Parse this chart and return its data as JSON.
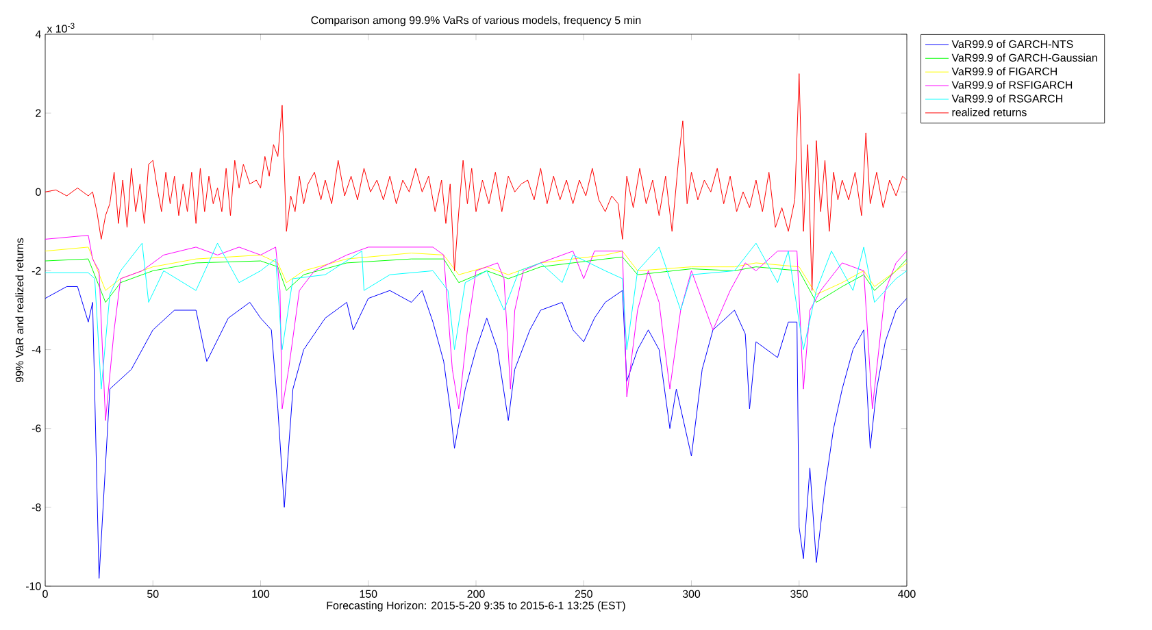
{
  "chart_data": {
    "type": "line",
    "title": "Comparison among 99.9% VaRs of various models, frequency 5 min",
    "xlabel": "Forecasting Horizon: 2015-5-20 9:35 to 2015-6-1 13:25 (EST)",
    "ylabel": "99% VaR and realized returns",
    "annotations": [
      "x 10$^{-3}$"
    ],
    "xlim": [
      0,
      400
    ],
    "ylim": [
      -10,
      4
    ],
    "xticks": [
      0,
      50,
      100,
      150,
      200,
      250,
      300,
      350,
      400
    ],
    "yticks": [
      -10,
      -8,
      -6,
      -4,
      -2,
      0,
      2,
      4
    ],
    "grid": false,
    "legend": "top right",
    "marker": "none",
    "line_style": "solid",
    "series": [
      {
        "name": "VaR99.9 of GARCH-NTS",
        "color": "#0000ff",
        "x": [
          0,
          10,
          15,
          20,
          22,
          25,
          30,
          40,
          50,
          60,
          70,
          75,
          85,
          95,
          100,
          105,
          108,
          111,
          115,
          120,
          130,
          140,
          143,
          150,
          160,
          170,
          175,
          180,
          185,
          188,
          190,
          195,
          200,
          205,
          210,
          215,
          218,
          225,
          230,
          240,
          245,
          250,
          255,
          260,
          268,
          270,
          275,
          280,
          285,
          290,
          293,
          300,
          305,
          310,
          320,
          325,
          327,
          330,
          340,
          345,
          349,
          350,
          352,
          355,
          358,
          362,
          366,
          370,
          375,
          380,
          383,
          386,
          390,
          395,
          400
        ],
        "values": [
          -2.7,
          -2.4,
          -2.4,
          -3.3,
          -2.8,
          -9.8,
          -5.0,
          -4.5,
          -3.5,
          -3.0,
          -3.0,
          -4.3,
          -3.2,
          -2.8,
          -3.2,
          -3.5,
          -5.5,
          -8.0,
          -5.0,
          -4.0,
          -3.2,
          -2.8,
          -3.5,
          -2.7,
          -2.5,
          -2.8,
          -2.5,
          -3.3,
          -4.3,
          -5.5,
          -6.5,
          -5.0,
          -4.0,
          -3.2,
          -4.0,
          -5.8,
          -4.5,
          -3.5,
          -3.0,
          -2.8,
          -3.5,
          -3.8,
          -3.2,
          -2.8,
          -2.5,
          -4.8,
          -4.0,
          -3.5,
          -4.0,
          -6.0,
          -5.0,
          -6.7,
          -4.5,
          -3.5,
          -3.0,
          -3.6,
          -5.5,
          -3.8,
          -4.2,
          -3.3,
          -3.3,
          -8.5,
          -9.3,
          -7.0,
          -9.4,
          -7.5,
          -6.0,
          -5.0,
          -4.0,
          -3.5,
          -6.5,
          -5.0,
          -3.8,
          -3.0,
          -2.7
        ]
      },
      {
        "name": "VaR99.9 of GARCH-Gaussian",
        "color": "#00ff00",
        "x": [
          0,
          20,
          28,
          35,
          50,
          70,
          100,
          108,
          112,
          120,
          140,
          170,
          185,
          192,
          205,
          215,
          230,
          260,
          268,
          275,
          300,
          320,
          330,
          350,
          358,
          370,
          380,
          385,
          395,
          400
        ],
        "values": [
          -1.75,
          -1.7,
          -2.8,
          -2.3,
          -2.0,
          -1.8,
          -1.75,
          -1.9,
          -2.5,
          -2.1,
          -1.8,
          -1.7,
          -1.7,
          -2.3,
          -2.0,
          -2.2,
          -1.9,
          -1.7,
          -1.65,
          -2.1,
          -1.95,
          -2.0,
          -1.9,
          -2.0,
          -2.8,
          -2.4,
          -2.1,
          -2.5,
          -2.0,
          -1.7
        ]
      },
      {
        "name": "VaR99.9 of FIGARCH",
        "color": "#ffff00",
        "x": [
          0,
          20,
          28,
          35,
          50,
          70,
          100,
          108,
          112,
          120,
          140,
          170,
          185,
          192,
          205,
          215,
          230,
          260,
          268,
          275,
          300,
          320,
          330,
          350,
          358,
          370,
          380,
          385,
          395,
          400
        ],
        "values": [
          -1.5,
          -1.4,
          -2.5,
          -2.2,
          -1.9,
          -1.7,
          -1.6,
          -1.8,
          -2.3,
          -2.0,
          -1.7,
          -1.55,
          -1.6,
          -2.1,
          -1.9,
          -2.1,
          -1.8,
          -1.6,
          -1.5,
          -2.0,
          -1.9,
          -1.9,
          -1.8,
          -1.9,
          -2.6,
          -2.3,
          -2.0,
          -2.4,
          -2.0,
          -1.8
        ]
      },
      {
        "name": "VaR99.9 of RSFIGARCH",
        "color": "#ff00ff",
        "x": [
          0,
          20,
          22,
          25,
          28,
          32,
          35,
          45,
          55,
          70,
          80,
          90,
          100,
          107,
          109,
          110,
          113,
          118,
          125,
          140,
          150,
          180,
          185,
          189,
          192,
          196,
          200,
          210,
          213,
          216,
          218,
          222,
          230,
          245,
          250,
          255,
          268,
          270,
          275,
          280,
          285,
          290,
          295,
          300,
          310,
          318,
          325,
          330,
          340,
          349,
          352,
          355,
          360,
          370,
          380,
          384,
          390,
          395,
          400
        ],
        "values": [
          -1.2,
          -1.1,
          -1.7,
          -2.0,
          -5.8,
          -3.5,
          -2.2,
          -2.0,
          -1.6,
          -1.4,
          -1.6,
          -1.4,
          -1.6,
          -1.4,
          -2.5,
          -5.5,
          -4.5,
          -2.5,
          -2.0,
          -1.6,
          -1.4,
          -1.4,
          -1.6,
          -4.5,
          -5.5,
          -3.5,
          -2.0,
          -1.8,
          -2.2,
          -5.0,
          -3.0,
          -2.0,
          -1.8,
          -1.5,
          -2.2,
          -1.5,
          -1.5,
          -5.2,
          -3.0,
          -2.0,
          -2.8,
          -5.0,
          -3.0,
          -2.0,
          -3.5,
          -2.5,
          -1.8,
          -2.0,
          -1.5,
          -1.5,
          -5.0,
          -3.0,
          -2.5,
          -1.8,
          -2.0,
          -5.5,
          -2.5,
          -1.8,
          -1.5
        ]
      },
      {
        "name": "VaR99.9 of RSGARCH",
        "color": "#00ffff",
        "x": [
          0,
          20,
          23,
          26,
          30,
          35,
          45,
          48,
          55,
          70,
          80,
          90,
          100,
          107,
          110,
          115,
          130,
          147,
          148,
          160,
          180,
          187,
          190,
          195,
          205,
          213,
          220,
          230,
          240,
          245,
          260,
          268,
          270,
          275,
          285,
          295,
          300,
          320,
          330,
          340,
          345,
          352,
          358,
          365,
          375,
          380,
          385,
          395,
          400
        ],
        "values": [
          -2.05,
          -2.05,
          -2.2,
          -5.0,
          -2.6,
          -2.0,
          -1.3,
          -2.8,
          -2.0,
          -2.5,
          -1.3,
          -2.3,
          -2.0,
          -1.7,
          -4.0,
          -2.2,
          -2.1,
          -1.5,
          -2.5,
          -2.1,
          -2.0,
          -2.5,
          -4.0,
          -2.3,
          -2.0,
          -3.0,
          -2.0,
          -1.8,
          -2.3,
          -1.6,
          -2.0,
          -2.2,
          -4.0,
          -2.0,
          -1.4,
          -3.0,
          -2.1,
          -2.0,
          -1.3,
          -2.3,
          -1.5,
          -4.0,
          -2.5,
          -1.5,
          -2.5,
          -1.4,
          -2.8,
          -2.2,
          -2.0
        ]
      },
      {
        "name": "realized returns",
        "color": "#ff0000",
        "x": [
          0,
          5,
          10,
          15,
          20,
          22,
          24,
          26,
          28,
          30,
          32,
          34,
          36,
          38,
          40,
          42,
          44,
          46,
          48,
          50,
          52,
          54,
          56,
          58,
          60,
          62,
          64,
          66,
          68,
          70,
          72,
          74,
          76,
          78,
          80,
          82,
          84,
          86,
          88,
          90,
          92,
          95,
          98,
          100,
          102,
          104,
          106,
          108,
          110,
          112,
          114,
          116,
          118,
          120,
          122,
          125,
          128,
          130,
          133,
          136,
          139,
          142,
          145,
          148,
          151,
          154,
          157,
          160,
          163,
          166,
          169,
          172,
          175,
          178,
          181,
          184,
          186,
          188,
          190,
          192,
          194,
          196,
          198,
          200,
          203,
          206,
          209,
          212,
          215,
          218,
          221,
          224,
          227,
          230,
          233,
          236,
          239,
          242,
          245,
          248,
          251,
          254,
          257,
          260,
          263,
          266,
          268,
          270,
          273,
          276,
          279,
          282,
          285,
          288,
          291,
          294,
          296,
          298,
          300,
          303,
          306,
          309,
          312,
          315,
          318,
          321,
          324,
          327,
          330,
          333,
          336,
          339,
          342,
          345,
          348,
          350,
          352,
          354,
          356,
          358,
          360,
          362,
          364,
          366,
          368,
          370,
          373,
          376,
          379,
          381,
          383,
          386,
          389,
          392,
          395,
          398,
          400
        ],
        "values": [
          0.0,
          0.05,
          -0.1,
          0.1,
          -0.1,
          0.0,
          -0.5,
          -1.2,
          -0.6,
          -0.3,
          0.5,
          -0.8,
          0.3,
          -0.9,
          0.6,
          -0.5,
          0.2,
          -0.8,
          0.7,
          0.8,
          0.1,
          -0.5,
          0.5,
          -0.3,
          0.4,
          -0.6,
          0.2,
          -0.5,
          0.5,
          -0.8,
          0.6,
          -0.5,
          0.4,
          -0.3,
          0.1,
          -0.5,
          0.6,
          -0.6,
          0.8,
          0.1,
          0.7,
          0.2,
          0.3,
          0.1,
          0.9,
          0.4,
          1.2,
          0.9,
          2.2,
          -1.0,
          -0.1,
          -0.5,
          0.4,
          -0.3,
          0.2,
          0.5,
          -0.2,
          0.3,
          -0.3,
          0.8,
          -0.1,
          0.4,
          -0.2,
          0.6,
          0.0,
          0.3,
          -0.2,
          0.4,
          -0.3,
          0.3,
          0.0,
          0.6,
          0.0,
          0.4,
          -0.5,
          0.3,
          -0.8,
          0.2,
          -2.0,
          -0.5,
          0.8,
          -0.3,
          0.6,
          -0.5,
          0.3,
          -0.3,
          0.5,
          -0.5,
          0.4,
          0.0,
          0.2,
          0.3,
          -0.2,
          0.6,
          -0.3,
          0.4,
          -0.2,
          0.3,
          -0.3,
          0.3,
          -0.1,
          0.6,
          -0.2,
          -0.5,
          -0.1,
          -0.3,
          -1.2,
          0.4,
          -0.4,
          0.6,
          -0.3,
          0.3,
          -0.6,
          0.4,
          -1.0,
          0.8,
          1.8,
          -0.3,
          0.5,
          -0.2,
          0.3,
          0.0,
          0.6,
          -0.3,
          0.4,
          -0.5,
          0.0,
          -0.4,
          0.3,
          -0.5,
          0.5,
          -0.9,
          -0.4,
          -1.0,
          -0.2,
          3.0,
          -1.0,
          1.2,
          -2.5,
          1.3,
          -0.5,
          0.8,
          -1.0,
          0.5,
          -0.2,
          0.3,
          -0.2,
          0.5,
          -0.6,
          1.5,
          -0.3,
          0.5,
          -0.4,
          0.3,
          -0.1,
          0.4,
          0.3
        ]
      }
    ]
  }
}
